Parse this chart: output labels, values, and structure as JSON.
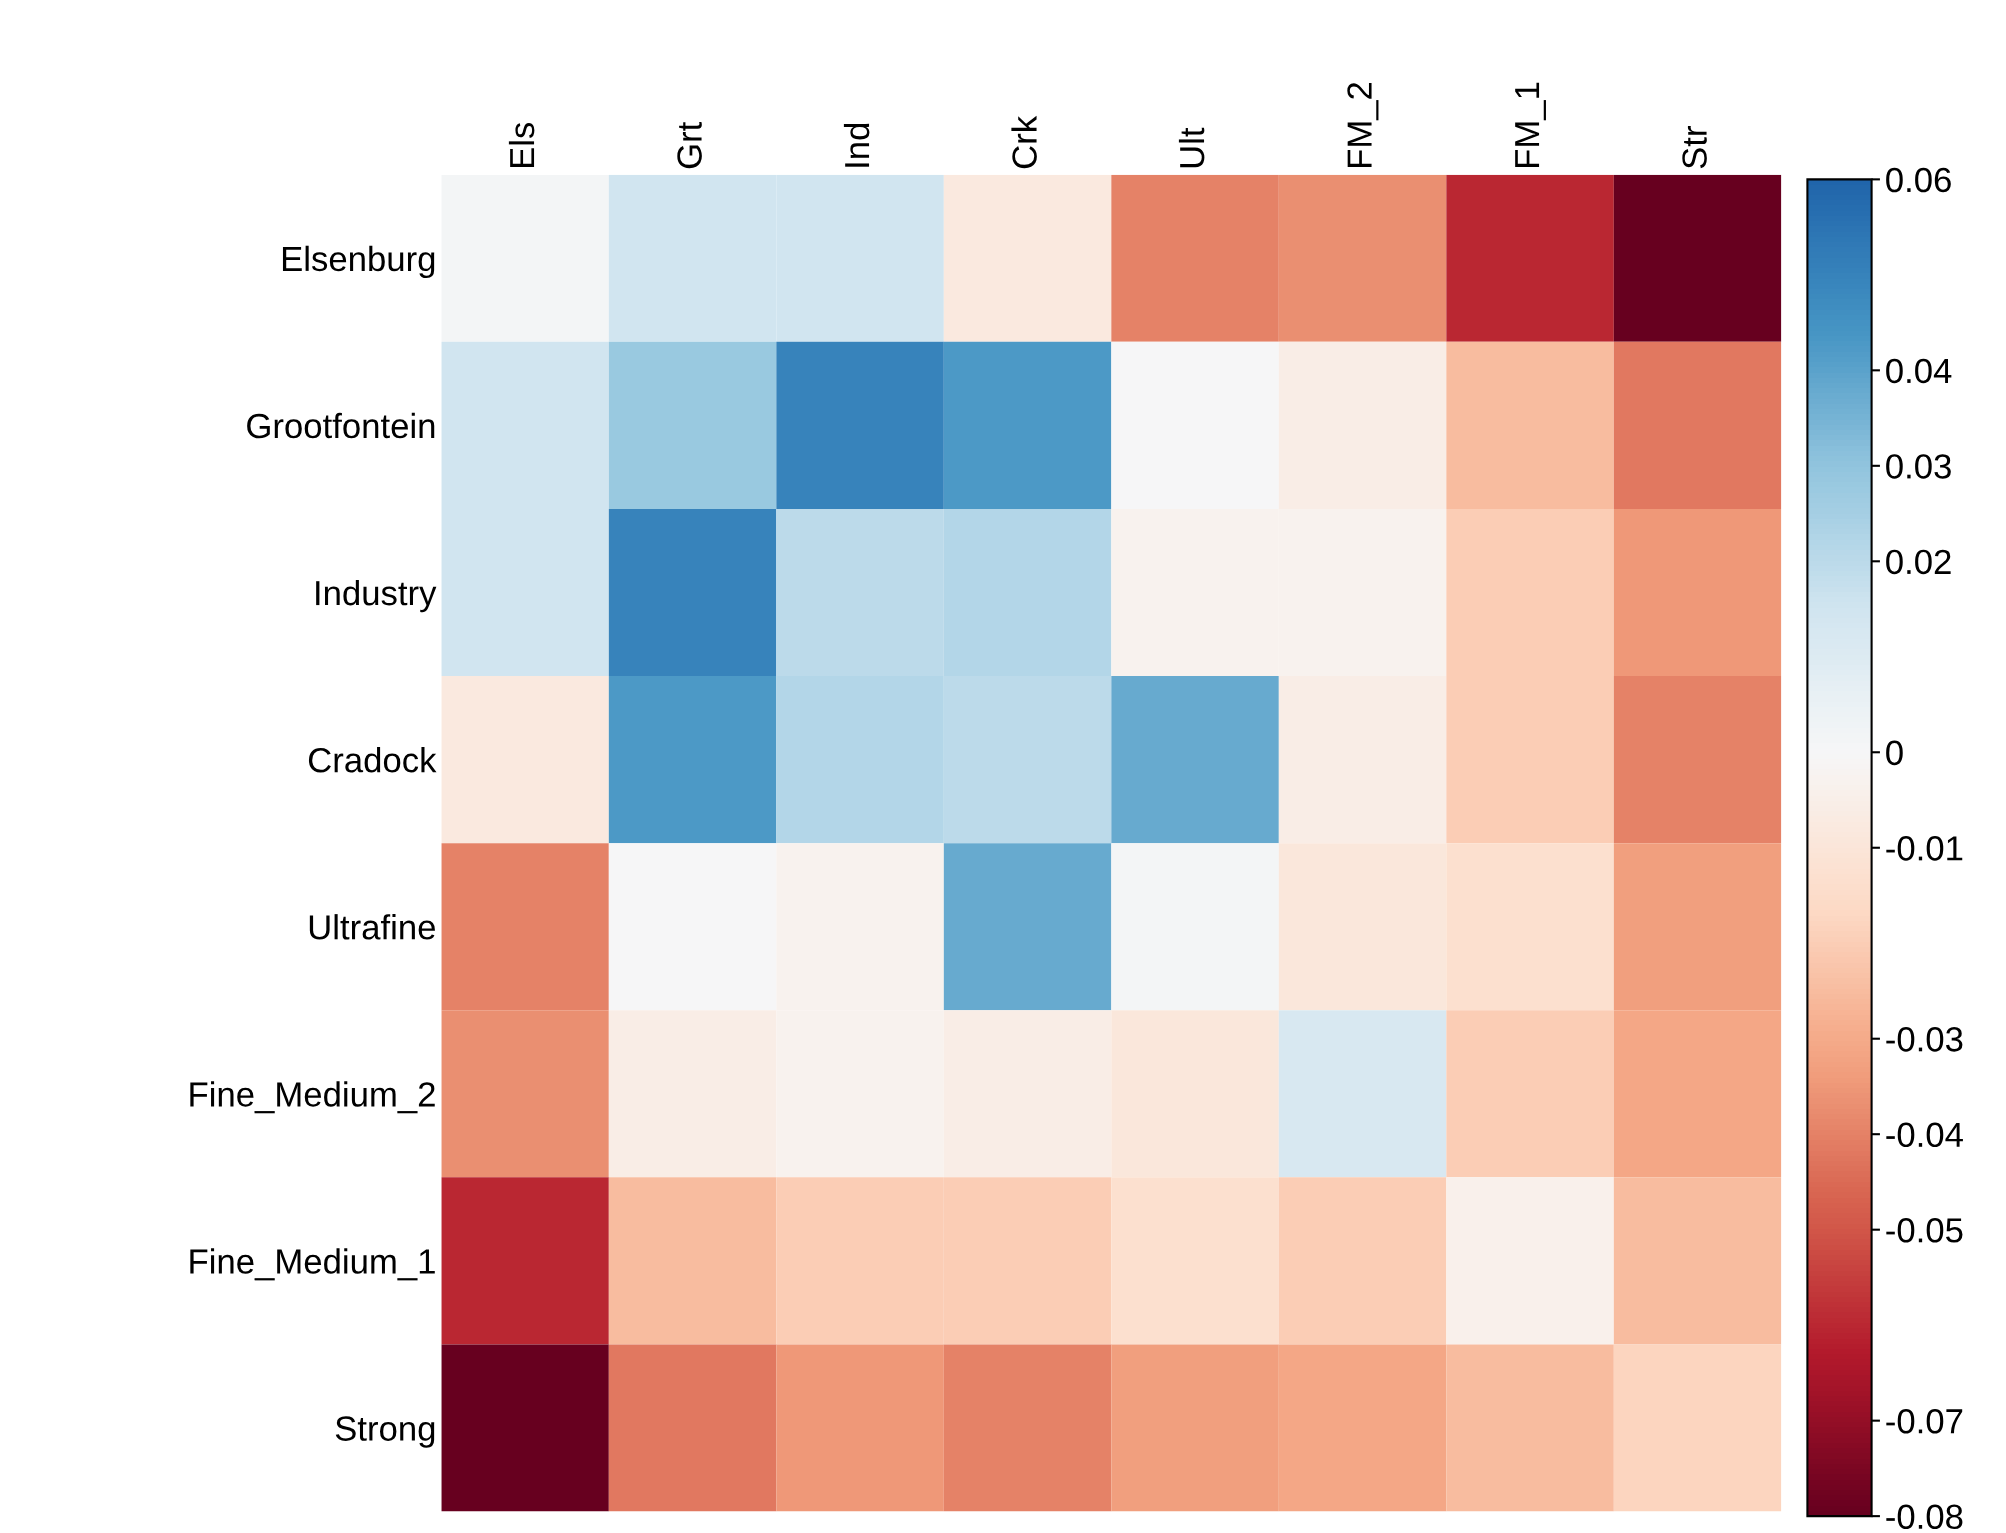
{
  "chart_data": {
    "type": "heatmap",
    "categories": [
      "Els",
      "Grt",
      "Ind",
      "Crk",
      "Ult",
      "FM_2",
      "FM_1",
      "Str"
    ],
    "y_categories": [
      "Elsenburg",
      "Grootfontein",
      "Industry",
      "Cradock",
      "Ultrafine",
      "Fine_Medium_2",
      "Fine_Medium_1",
      "Strong"
    ],
    "cells": [
      [
        0.001,
        0.015,
        0.015,
        -0.008,
        -0.04,
        -0.037,
        -0.06,
        -0.08
      ],
      [
        0.015,
        0.028,
        0.05,
        0.043,
        0.0,
        -0.006,
        -0.025,
        -0.042
      ],
      [
        0.015,
        0.05,
        0.02,
        0.022,
        -0.003,
        -0.003,
        -0.02,
        -0.035
      ],
      [
        -0.008,
        0.043,
        0.022,
        0.02,
        0.038,
        -0.006,
        -0.02,
        -0.04
      ],
      [
        -0.04,
        0.0,
        -0.003,
        0.038,
        0.001,
        -0.009,
        -0.013,
        -0.033
      ],
      [
        -0.037,
        -0.006,
        -0.003,
        -0.006,
        -0.009,
        0.012,
        -0.02,
        -0.031
      ],
      [
        -0.06,
        -0.025,
        -0.02,
        -0.02,
        -0.013,
        -0.02,
        -0.004,
        -0.025
      ],
      [
        -0.08,
        -0.042,
        -0.035,
        -0.04,
        -0.033,
        -0.031,
        -0.025,
        -0.018
      ]
    ],
    "clim": [
      -0.08,
      0.06
    ],
    "cticks": [
      0.06,
      0.04,
      0.03,
      0.02,
      0,
      -0.01,
      -0.03,
      -0.04,
      -0.05,
      -0.07,
      -0.08
    ]
  }
}
